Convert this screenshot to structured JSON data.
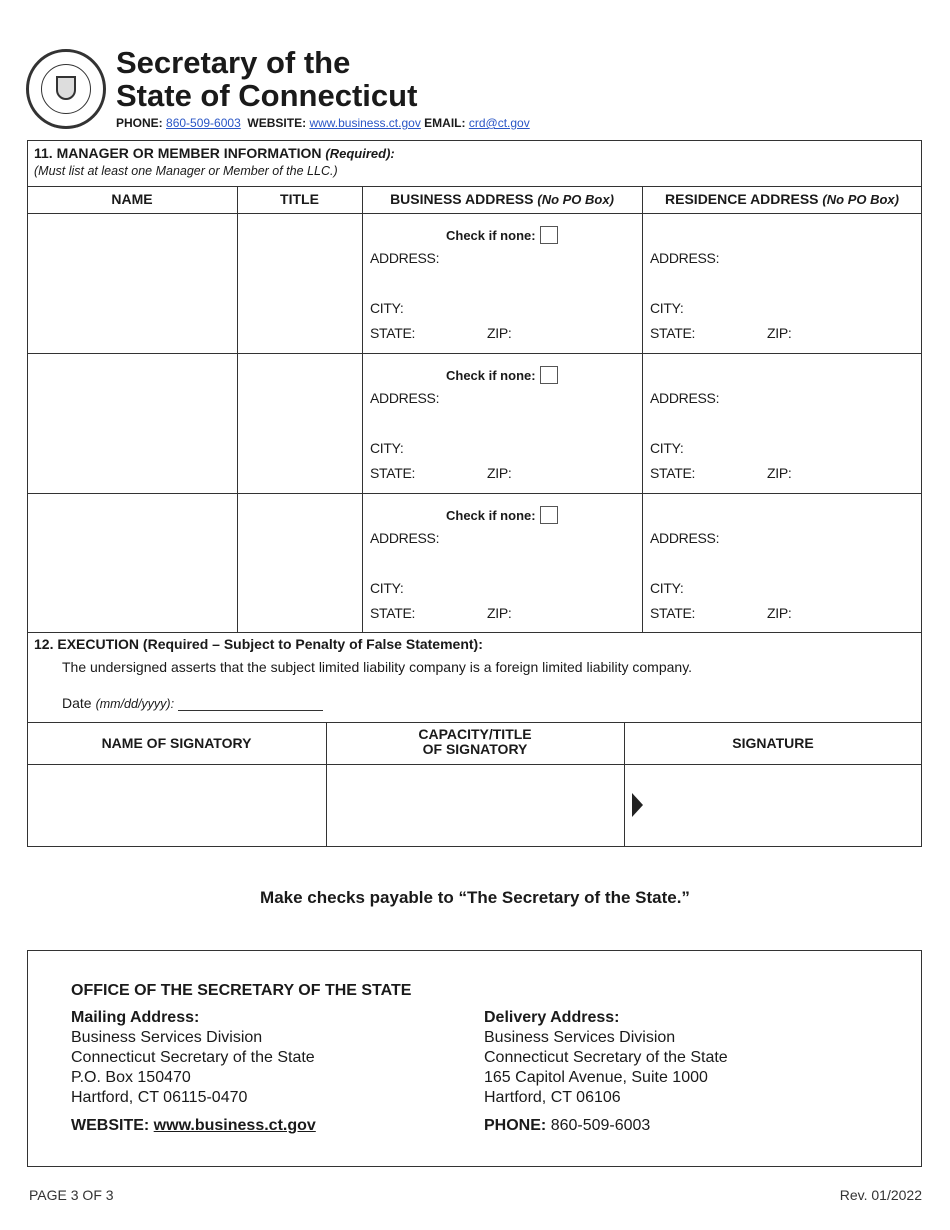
{
  "header": {
    "seal": "Seal of the State of Connecticut - SIGILL. REIPUB. CONN. SECRET. ET CUSTOS",
    "title_line1": "Secretary of the",
    "title_line2": "State of Connecticut",
    "phone_label": "PHONE:",
    "phone": "860-509-6003",
    "website_label": "WEBSITE:",
    "website": "www.business.ct.gov",
    "email_label": "EMAIL:",
    "email": "crd@ct.gov"
  },
  "section11": {
    "title": "11. MANAGER OR MEMBER INFORMATION",
    "required": "(Required):",
    "note": "(Must list at least one Manager or Member of the LLC.)",
    "columns": {
      "name": "NAME",
      "title": "TITLE",
      "business": "BUSINESS ADDRESS",
      "business_note": "(No PO Box)",
      "residence": "RESIDENCE ADDRESS",
      "residence_note": "(No PO Box)"
    },
    "labels": {
      "check_none": "Check if none:",
      "address": "ADDRESS:",
      "city": "CITY:",
      "state": "STATE:",
      "zip": "ZIP:"
    },
    "rows": [
      {
        "name": "",
        "title": "",
        "check_none": false
      },
      {
        "name": "",
        "title": "",
        "check_none": false
      },
      {
        "name": "",
        "title": "",
        "check_none": false
      }
    ]
  },
  "section12": {
    "title": "12. EXECUTION (Required – Subject to Penalty of False Statement):",
    "statement": "The undersigned asserts that the subject limited liability company is a foreign limited liability company.",
    "date_label": "Date",
    "date_format": "(mm/dd/yyyy):",
    "date_value": "",
    "columns": {
      "name": "NAME OF SIGNATORY",
      "capacity_line1": "CAPACITY/TITLE",
      "capacity_line2": "OF SIGNATORY",
      "signature": "SIGNATURE"
    }
  },
  "checks_note": "Make checks payable to “The Secretary of the State.”",
  "office": {
    "title": "OFFICE OF THE SECRETARY OF THE STATE",
    "mailing": {
      "label": "Mailing Address:",
      "lines": [
        "Business Services Division",
        "Connecticut Secretary of the State",
        "P.O. Box 150470",
        "Hartford, CT 06115-0470"
      ]
    },
    "delivery": {
      "label": "Delivery Address:",
      "lines": [
        "Business Services Division",
        "Connecticut Secretary of the State",
        "165 Capitol Avenue, Suite 1000",
        "Hartford, CT 06106"
      ]
    },
    "website_label": "WEBSITE:",
    "website": "www.business.ct.gov",
    "phone_label": "PHONE:",
    "phone": "860-509-6003"
  },
  "footer": {
    "page": "PAGE 3 OF 3",
    "rev": "Rev. 01/2022"
  }
}
